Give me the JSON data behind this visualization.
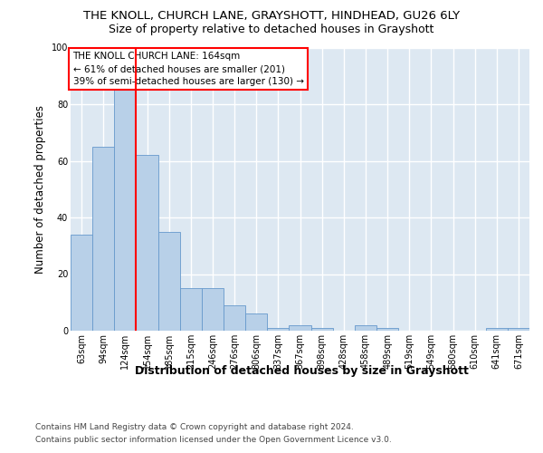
{
  "title": "THE KNOLL, CHURCH LANE, GRAYSHOTT, HINDHEAD, GU26 6LY",
  "subtitle": "Size of property relative to detached houses in Grayshott",
  "xlabel": "Distribution of detached houses by size in Grayshott",
  "ylabel": "Number of detached properties",
  "bins": [
    "63sqm",
    "94sqm",
    "124sqm",
    "154sqm",
    "185sqm",
    "215sqm",
    "246sqm",
    "276sqm",
    "306sqm",
    "337sqm",
    "367sqm",
    "398sqm",
    "428sqm",
    "458sqm",
    "489sqm",
    "519sqm",
    "549sqm",
    "580sqm",
    "610sqm",
    "641sqm",
    "671sqm"
  ],
  "values": [
    34,
    65,
    85,
    62,
    35,
    15,
    15,
    9,
    6,
    1,
    2,
    1,
    0,
    2,
    1,
    0,
    0,
    0,
    0,
    1,
    1
  ],
  "bar_color": "#b8d0e8",
  "bar_edge_color": "#6699cc",
  "red_line_x": 2.5,
  "annotation_line1": "THE KNOLL CHURCH LANE: 164sqm",
  "annotation_line2": "← 61% of detached houses are smaller (201)",
  "annotation_line3": "39% of semi-detached houses are larger (130) →",
  "ylim": [
    0,
    100
  ],
  "yticks": [
    0,
    20,
    40,
    60,
    80,
    100
  ],
  "footer_line1": "Contains HM Land Registry data © Crown copyright and database right 2024.",
  "footer_line2": "Contains public sector information licensed under the Open Government Licence v3.0.",
  "bg_color": "#dde8f2",
  "grid_color": "#ffffff",
  "title_fontsize": 9.5,
  "subtitle_fontsize": 9,
  "ylabel_fontsize": 8.5,
  "xlabel_fontsize": 9,
  "tick_fontsize": 7,
  "annotation_fontsize": 7.5,
  "footer_fontsize": 6.5
}
